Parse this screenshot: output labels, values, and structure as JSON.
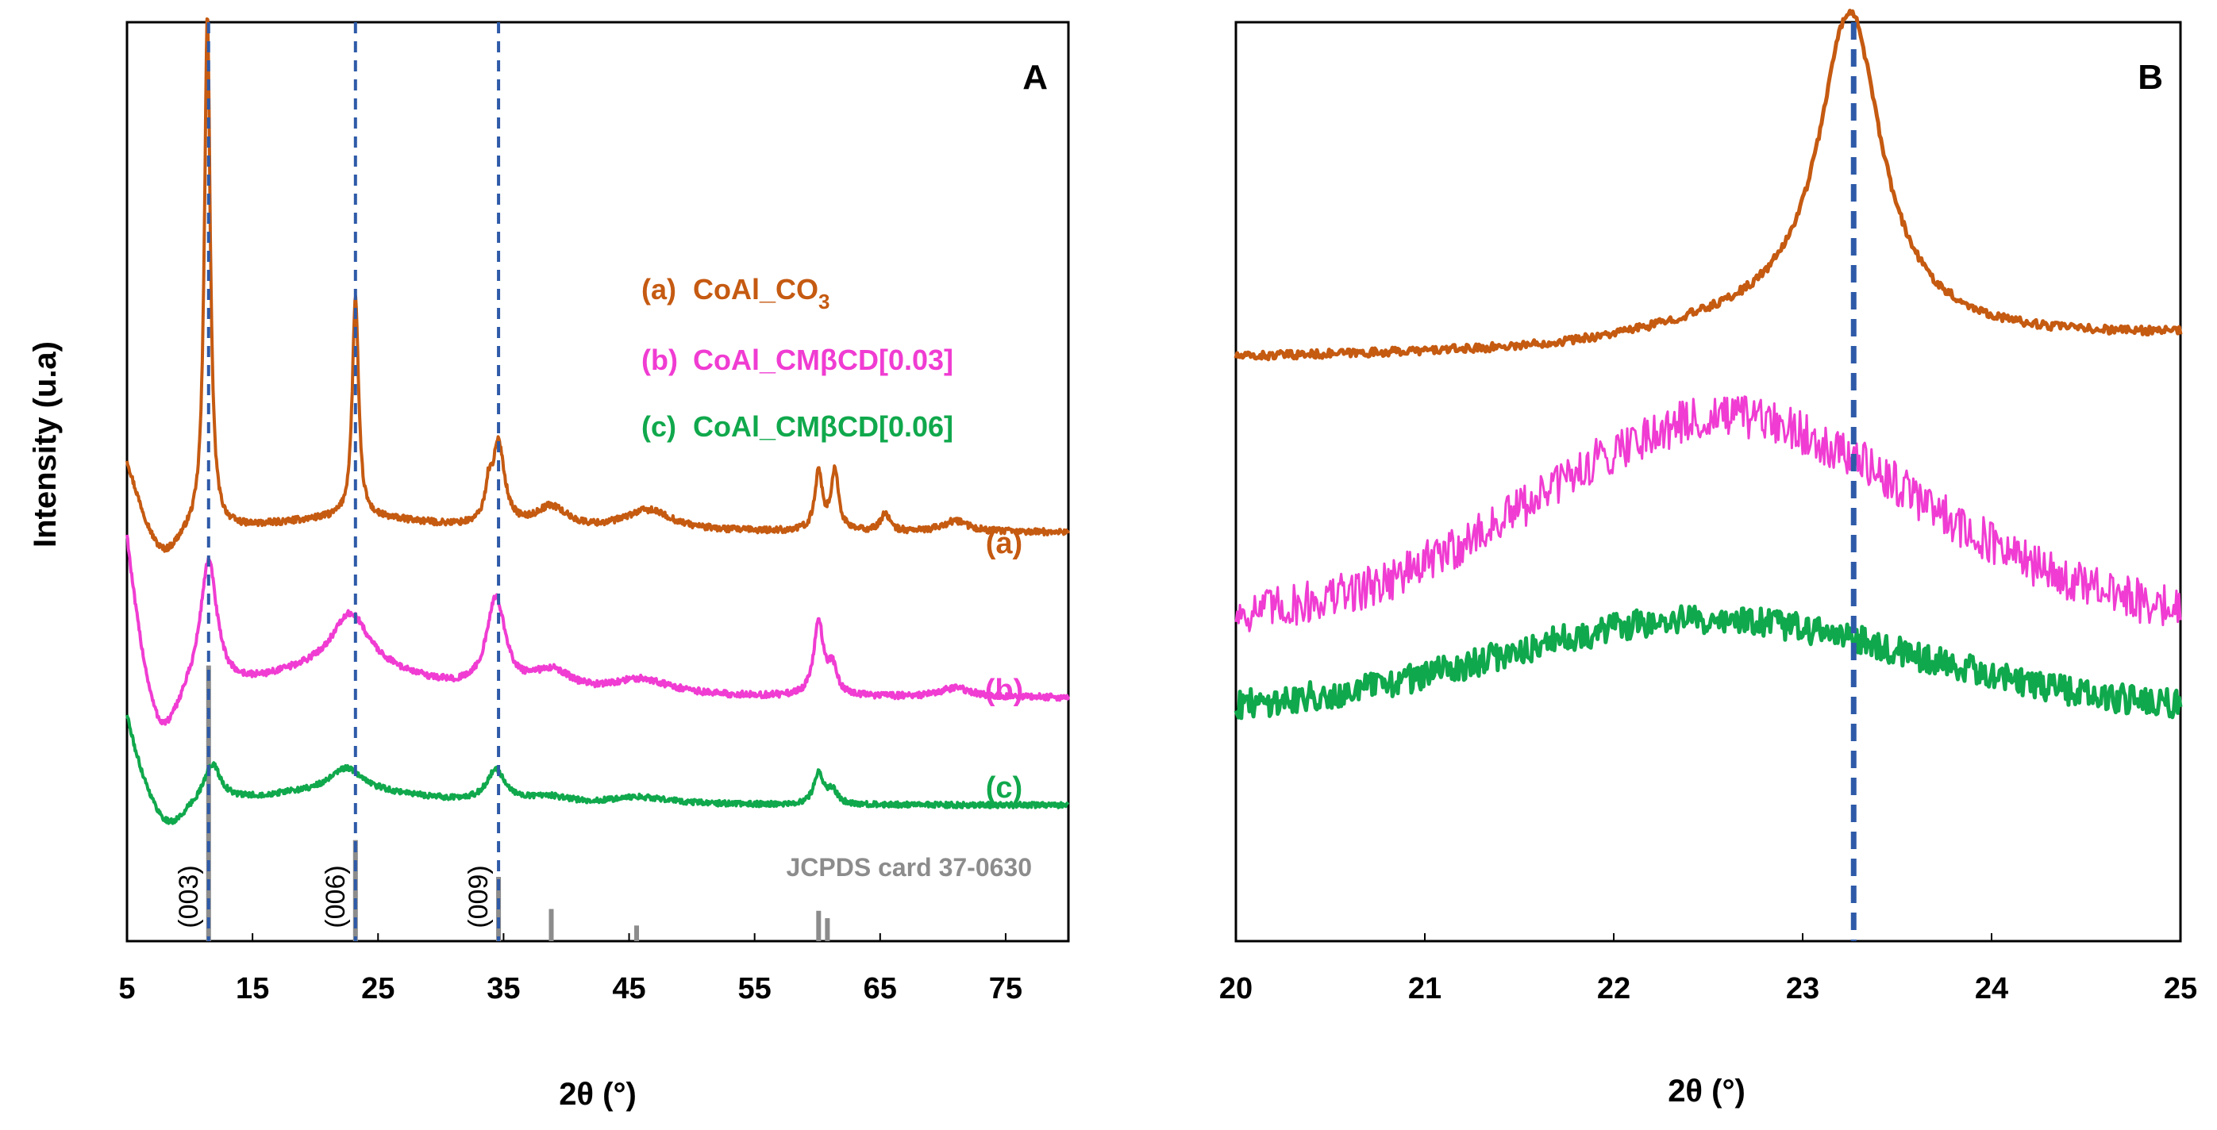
{
  "chart_data": [
    {
      "panel": "A",
      "type": "line",
      "title": "",
      "xlabel": "2θ (°)",
      "ylabel": "Intensity (u.a)",
      "xlim": [
        5,
        80
      ],
      "x_ticks": [
        5,
        15,
        25,
        35,
        45,
        55,
        65,
        75
      ],
      "x_tick_labels": [
        "5",
        "15",
        "25",
        "35",
        "45",
        "55",
        "65",
        "75"
      ],
      "ylim": [
        0,
        100
      ],
      "legend_placement": "top-right",
      "legend": [
        {
          "marker": "(a)",
          "name": "CoAl_CO",
          "subscript": "3",
          "color": "#c55a11"
        },
        {
          "marker": "(b)",
          "name": "CoAl_CMβCD[0.03]",
          "subscript": "",
          "color": "#f03cd2"
        },
        {
          "marker": "(c)",
          "name": "CoAl_CMβCD[0.06]",
          "subscript": "",
          "color": "#10a84c"
        }
      ],
      "series": [
        {
          "name": "(a) CoAl_CO3",
          "label": "(a)",
          "color": "#c55a11",
          "baseline": 44.5,
          "noise": 0.35,
          "start": {
            "x0": 5,
            "amp": 8,
            "decay": 1.6
          },
          "dips": [
            {
              "x": 7.8,
              "depth": 3.5,
              "width": 1.2
            }
          ],
          "peaks": [
            {
              "x": 11.4,
              "h": 56,
              "w": 0.28
            },
            {
              "x": 23.2,
              "h": 24,
              "w": 0.3
            },
            {
              "x": 33.8,
              "h": 3,
              "w": 0.3
            },
            {
              "x": 34.6,
              "h": 9,
              "w": 0.6
            },
            {
              "x": 38.8,
              "h": 2.5,
              "w": 1.6
            },
            {
              "x": 46.5,
              "h": 2.3,
              "w": 2.4
            },
            {
              "x": 60.1,
              "h": 6.5,
              "w": 0.35
            },
            {
              "x": 61.4,
              "h": 6.5,
              "w": 0.35
            },
            {
              "x": 65.4,
              "h": 2,
              "w": 0.4
            },
            {
              "x": 71,
              "h": 1.2,
              "w": 1.2
            }
          ],
          "humps": [
            {
              "x": 23,
              "h": 1.5,
              "w": 6
            }
          ]
        },
        {
          "name": "(b) CoAl_CMβCD[0.03]",
          "label": "(b)",
          "color": "#f03cd2",
          "baseline": 26.5,
          "noise": 0.35,
          "start": {
            "x0": 5,
            "amp": 18,
            "decay": 1.4
          },
          "dips": [
            {
              "x": 7.7,
              "depth": 6,
              "width": 1.2
            }
          ],
          "peaks": [
            {
              "x": 11.5,
              "h": 14,
              "w": 0.8
            },
            {
              "x": 22.8,
              "h": 6,
              "w": 1.8
            },
            {
              "x": 34.4,
              "h": 10,
              "w": 0.9
            },
            {
              "x": 38.8,
              "h": 2.5,
              "w": 2
            },
            {
              "x": 46,
              "h": 1.8,
              "w": 3
            },
            {
              "x": 60.1,
              "h": 8,
              "w": 0.45
            },
            {
              "x": 61.2,
              "h": 3,
              "w": 0.45
            },
            {
              "x": 71,
              "h": 1,
              "w": 1.5
            }
          ],
          "humps": [
            {
              "x": 22,
              "h": 3,
              "w": 6
            }
          ]
        },
        {
          "name": "(c) CoAl_CMβCD[0.06]",
          "label": "(c)",
          "color": "#10a84c",
          "baseline": 14.8,
          "noise": 0.3,
          "start": {
            "x0": 5,
            "amp": 10,
            "decay": 1.5
          },
          "dips": [
            {
              "x": 8.2,
              "depth": 3.2,
              "width": 1.3
            }
          ],
          "peaks": [
            {
              "x": 11.8,
              "h": 4,
              "w": 0.8
            },
            {
              "x": 22.5,
              "h": 2.5,
              "w": 1.5
            },
            {
              "x": 34.4,
              "h": 3.5,
              "w": 0.9
            },
            {
              "x": 38.5,
              "h": 0.8,
              "w": 2
            },
            {
              "x": 46,
              "h": 0.8,
              "w": 3
            },
            {
              "x": 60.1,
              "h": 3.5,
              "w": 0.45
            },
            {
              "x": 61.2,
              "h": 1.5,
              "w": 0.45
            }
          ],
          "humps": [
            {
              "x": 22,
              "h": 1.5,
              "w": 6
            }
          ]
        }
      ],
      "reference_lines": {
        "x": [
          11.5,
          23.2,
          34.6
        ],
        "color": "#2e5aa8",
        "style": "dashed"
      },
      "reference_pattern": {
        "label": "JCPDS card 37-0630",
        "color": "#8c8c8c",
        "sticks": [
          {
            "x": 11.5,
            "h": 30
          },
          {
            "x": 23.2,
            "h": 11
          },
          {
            "x": 34.6,
            "h": 7
          },
          {
            "x": 38.8,
            "h": 3.5
          },
          {
            "x": 45.6,
            "h": 1.7
          },
          {
            "x": 60.1,
            "h": 3.3
          },
          {
            "x": 60.8,
            "h": 2.5
          }
        ]
      },
      "miller_indices": [
        {
          "x": 11.5,
          "label": "(003)"
        },
        {
          "x": 23.2,
          "label": "(006)"
        },
        {
          "x": 34.6,
          "label": "(009)"
        }
      ]
    },
    {
      "panel": "B",
      "type": "line",
      "title": "",
      "xlabel": "2θ (°)",
      "ylabel": "",
      "xlim": [
        20,
        25
      ],
      "x_ticks": [
        20,
        21,
        22,
        23,
        24,
        25
      ],
      "x_tick_labels": [
        "20",
        "21",
        "22",
        "23",
        "24",
        "25"
      ],
      "ylim": [
        0,
        100
      ],
      "series": [
        {
          "name": "(a) CoAl_CO3",
          "color": "#c55a11",
          "baseline": 63.5,
          "slope": 0.5,
          "noise": 0.45,
          "peaks": [
            {
              "x": 23.25,
              "h": 34,
              "w": 0.2
            }
          ],
          "humps": [
            {
              "x": 22.9,
              "h": 2.5,
              "w": 0.6
            }
          ]
        },
        {
          "name": "(b) CoAl_CMβCD[0.03]",
          "color": "#f03cd2",
          "baseline": 35,
          "slope": 0,
          "noise": 2.4,
          "peaks": [],
          "humps": [
            {
              "x": 22.6,
              "h": 22,
              "w": 1.0
            }
          ]
        },
        {
          "name": "(c) CoAl_CMβCD[0.06]",
          "color": "#10a84c",
          "baseline": 25,
          "slope": 0,
          "noise": 1.6,
          "peaks": [],
          "humps": [
            {
              "x": 22.5,
              "h": 10,
              "w": 1.1
            }
          ]
        }
      ],
      "reference_lines": {
        "x": [
          23.27
        ],
        "color": "#2e5aa8",
        "style": "dashed"
      }
    }
  ]
}
